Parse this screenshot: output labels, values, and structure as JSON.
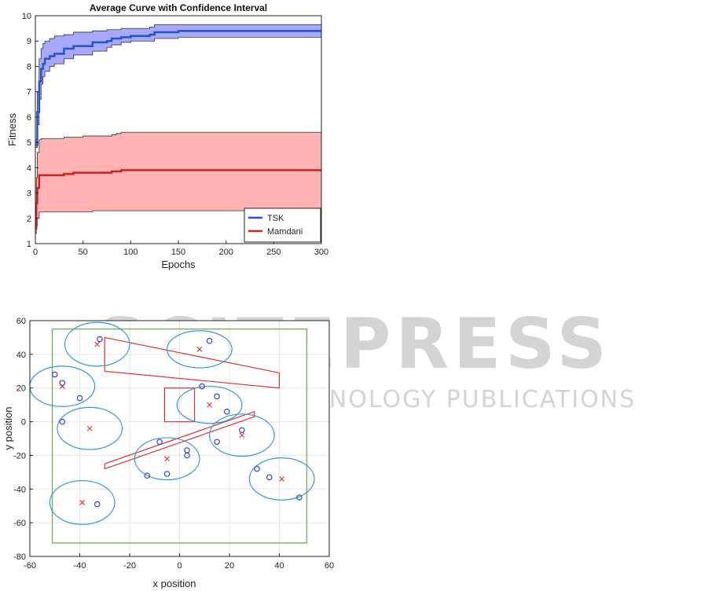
{
  "watermark": {
    "main": "SCITEPRESS",
    "sub": "SCIENCE AND TECHNOLOGY PUBLICATIONS"
  },
  "chart_data": [
    {
      "type": "line",
      "title": "Average Curve with Confidence Interval",
      "xlabel": "Epochs",
      "ylabel": "Fitness",
      "xlim": [
        0,
        300
      ],
      "ylim": [
        1,
        10
      ],
      "xticks": [
        0,
        50,
        100,
        150,
        200,
        250,
        300
      ],
      "yticks": [
        1,
        2,
        3,
        4,
        5,
        6,
        7,
        8,
        9,
        10
      ],
      "legend": {
        "placement": "bottom-right",
        "entries": [
          "TSK",
          "Mamdani"
        ]
      },
      "series": [
        {
          "name": "TSK",
          "color": "#2255cc",
          "band_color": "#a8a8ff",
          "x": [
            0,
            2,
            4,
            6,
            8,
            10,
            15,
            20,
            30,
            40,
            60,
            75,
            80,
            90,
            100,
            120,
            125,
            150,
            200,
            300
          ],
          "mean": [
            4.9,
            6.2,
            7.4,
            7.9,
            8.1,
            8.3,
            8.4,
            8.5,
            8.7,
            8.8,
            8.95,
            9.0,
            9.1,
            9.15,
            9.2,
            9.25,
            9.35,
            9.4,
            9.4,
            9.4
          ],
          "lower": [
            4.8,
            5.7,
            6.7,
            7.3,
            7.6,
            7.8,
            8.0,
            8.1,
            8.3,
            8.45,
            8.6,
            8.75,
            8.85,
            8.95,
            9.0,
            9.0,
            9.1,
            9.15,
            9.15,
            9.15
          ],
          "upper": [
            5.1,
            7.0,
            8.3,
            8.7,
            8.9,
            9.0,
            9.1,
            9.2,
            9.25,
            9.35,
            9.4,
            9.45,
            9.45,
            9.5,
            9.5,
            9.55,
            9.65,
            9.65,
            9.65,
            9.65
          ]
        },
        {
          "name": "Mamdani",
          "color": "#cc2222",
          "band_color": "#ffb3b3",
          "x": [
            0,
            1,
            2,
            4,
            6,
            10,
            20,
            30,
            40,
            50,
            60,
            80,
            85,
            90,
            150,
            200,
            300
          ],
          "mean": [
            1.6,
            2.6,
            3.2,
            3.7,
            3.7,
            3.7,
            3.7,
            3.75,
            3.8,
            3.8,
            3.8,
            3.85,
            3.85,
            3.9,
            3.9,
            3.9,
            3.9
          ],
          "lower": [
            1.4,
            1.7,
            2.0,
            2.25,
            2.25,
            2.25,
            2.25,
            2.25,
            2.25,
            2.25,
            2.3,
            2.3,
            2.3,
            2.3,
            2.3,
            2.3,
            2.3
          ],
          "upper": [
            1.8,
            3.6,
            4.6,
            5.1,
            5.15,
            5.15,
            5.15,
            5.2,
            5.2,
            5.25,
            5.25,
            5.3,
            5.35,
            5.4,
            5.4,
            5.4,
            5.4
          ]
        }
      ]
    },
    {
      "type": "scatter",
      "title": "",
      "xlabel": "x position",
      "ylabel": "y position",
      "xlim": [
        -60,
        60
      ],
      "ylim": [
        -80,
        60
      ],
      "xticks": [
        -60,
        -40,
        -20,
        0,
        20,
        40,
        60
      ],
      "yticks": [
        -80,
        -60,
        -40,
        -20,
        0,
        20,
        40,
        60
      ],
      "grid": true,
      "boundary": {
        "x": [
          -51,
          51
        ],
        "y": [
          -72,
          55
        ],
        "color": "#66aa44"
      },
      "obstacles": [
        {
          "shape": "polygon",
          "points": [
            [
              -30,
              50
            ],
            [
              -30,
              30
            ],
            [
              40,
              20
            ],
            [
              40,
              29
            ]
          ]
        },
        {
          "shape": "rectangle",
          "points": [
            [
              -6,
              20
            ],
            [
              6,
              20
            ],
            [
              6,
              0
            ],
            [
              -6,
              0
            ]
          ]
        },
        {
          "shape": "polygon",
          "points": [
            [
              -30,
              -25
            ],
            [
              -30,
              -28
            ],
            [
              30,
              3
            ],
            [
              30,
              6
            ]
          ]
        }
      ],
      "clusters": [
        {
          "center": [
            -33,
            46
          ],
          "radii": [
            13,
            13
          ],
          "points": [
            [
              -32,
              49
            ]
          ]
        },
        {
          "center": [
            8,
            43
          ],
          "radii": [
            13,
            11
          ],
          "points": [
            [
              12,
              48
            ]
          ]
        },
        {
          "center": [
            -47,
            21
          ],
          "radii": [
            13,
            12
          ],
          "points": [
            [
              -50,
              28
            ],
            [
              -47,
              23
            ],
            [
              -40,
              14
            ]
          ]
        },
        {
          "center": [
            12,
            10
          ],
          "radii": [
            13,
            11
          ],
          "points": [
            [
              9,
              21
            ],
            [
              15,
              15
            ],
            [
              19,
              6
            ]
          ]
        },
        {
          "center": [
            -36,
            -4
          ],
          "radii": [
            13,
            12.5
          ],
          "points": [
            [
              -47,
              0
            ]
          ]
        },
        {
          "center": [
            25,
            -8
          ],
          "radii": [
            13,
            12.5
          ],
          "points": [
            [
              25,
              -5
            ],
            [
              15,
              -12
            ]
          ]
        },
        {
          "center": [
            -5,
            -22
          ],
          "radii": [
            13,
            12.5
          ],
          "points": [
            [
              -8,
              -12
            ],
            [
              3,
              -17
            ],
            [
              3,
              -20
            ],
            [
              -5,
              -31
            ],
            [
              -13,
              -32
            ]
          ]
        },
        {
          "center": [
            41,
            -34
          ],
          "radii": [
            13,
            12.5
          ],
          "points": [
            [
              31,
              -28
            ],
            [
              36,
              -33
            ],
            [
              48,
              -45
            ]
          ]
        },
        {
          "center": [
            -39,
            -48
          ],
          "radii": [
            13,
            13
          ],
          "points": [
            [
              -33,
              -49
            ]
          ]
        }
      ]
    }
  ]
}
